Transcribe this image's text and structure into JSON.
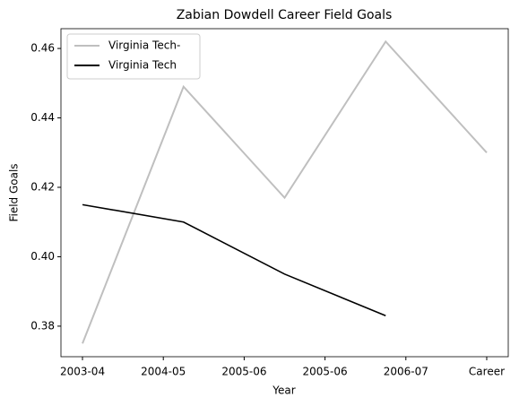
{
  "chart_data": {
    "type": "line",
    "title": "Zabian Dowdell Career Field Goals",
    "x_label": "Year",
    "y_label": "Field Goals",
    "x": [
      0,
      1,
      2,
      3,
      4
    ],
    "series": [
      {
        "name": "Virginia Tech-",
        "color": "#bfbfbf",
        "values": [
          0.375,
          0.449,
          0.417,
          0.462,
          0.43
        ]
      },
      {
        "name": "Virginia Tech",
        "color": "#000000",
        "values": [
          0.415,
          0.41,
          0.395,
          0.383,
          null
        ]
      }
    ],
    "xlim": [
      -0.213,
      4.213
    ],
    "xticks": [
      {
        "value": 0,
        "label": "2003-04"
      },
      {
        "value": 0.8,
        "label": "2004-05"
      },
      {
        "value": 1.6,
        "label": "2005-06"
      },
      {
        "value": 2.4,
        "label": "2005-06"
      },
      {
        "value": 3.2,
        "label": "2006-07"
      },
      {
        "value": 4.0,
        "label": "Career"
      }
    ],
    "ylim": [
      0.3712,
      0.4657
    ],
    "yticks": [
      0.38,
      {
        "value": 0.4,
        "label": "0.40"
      },
      0.42,
      0.44,
      0.46
    ],
    "legend": "upper left",
    "grid": false
  }
}
